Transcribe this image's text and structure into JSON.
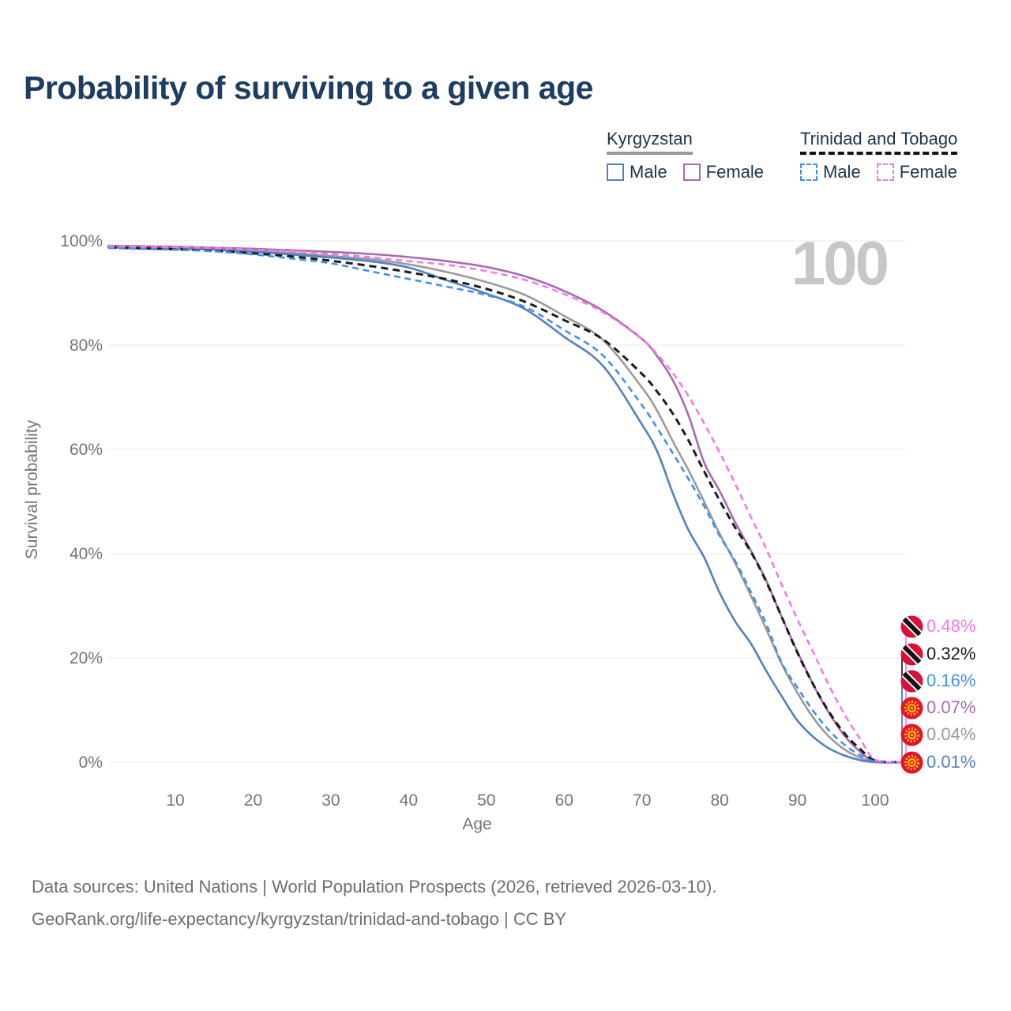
{
  "title": "Probability of surviving to a given age",
  "watermark_age": "100",
  "legend": {
    "groups": [
      {
        "name": "Kyrgyzstan",
        "line_style": "solid",
        "underline_color": "#9a9a9a",
        "items": [
          {
            "label": "Male",
            "color": "#5580c0"
          },
          {
            "label": "Female",
            "color": "#aa6ab0"
          }
        ]
      },
      {
        "name": "Trinidad and Tobago",
        "line_style": "dashed",
        "underline_color": "#141414",
        "items": [
          {
            "label": "Male",
            "color": "#4190f0"
          },
          {
            "label": "Female",
            "color": "#f47ae8"
          }
        ]
      }
    ]
  },
  "chart_data": {
    "type": "line",
    "title": "Probability of surviving to a given age",
    "xlabel": "Age",
    "ylabel": "Survival probability",
    "xlim": [
      0,
      100
    ],
    "ylim": [
      0,
      100
    ],
    "grid": "horizontal",
    "legend_position": "top-right",
    "x_ticks": [
      {
        "value": 10,
        "label": "10"
      },
      {
        "value": 20,
        "label": "20"
      },
      {
        "value": 30,
        "label": "30"
      },
      {
        "value": 40,
        "label": "40"
      },
      {
        "value": 50,
        "label": "50"
      },
      {
        "value": 60,
        "label": "60"
      },
      {
        "value": 70,
        "label": "70"
      },
      {
        "value": 80,
        "label": "80"
      },
      {
        "value": 90,
        "label": "90"
      },
      {
        "value": 100,
        "label": "100"
      }
    ],
    "y_ticks": [
      {
        "value": 0,
        "label": "0%"
      },
      {
        "value": 20,
        "label": "20%"
      },
      {
        "value": 40,
        "label": "40%"
      },
      {
        "value": 60,
        "label": "60%"
      },
      {
        "value": 80,
        "label": "80%"
      },
      {
        "value": 100,
        "label": "100%"
      }
    ],
    "x": [
      0,
      5,
      10,
      15,
      20,
      25,
      30,
      35,
      40,
      45,
      50,
      55,
      60,
      65,
      70,
      72,
      74,
      76,
      78,
      80,
      82,
      84,
      86,
      88,
      90,
      92,
      94,
      96,
      98,
      100,
      103.5
    ],
    "series": [
      {
        "name": "Kyrgyzstan — All",
        "country": "Kyrgyzstan",
        "sex": "all",
        "color": "#9b9b9b",
        "dash": null,
        "width": 2.6,
        "values": [
          98.8,
          98.7,
          98.6,
          98.4,
          98.1,
          97.7,
          97.1,
          96.5,
          95.5,
          94.0,
          92.1,
          89.6,
          85.6,
          81.0,
          71.9,
          67.3,
          61.5,
          56.0,
          50.0,
          43.8,
          38.2,
          32.0,
          25.5,
          18.8,
          13.3,
          8.6,
          5.0,
          2.5,
          0.9,
          0.04,
          0
        ]
      },
      {
        "name": "Kyrgyzstan — Male",
        "country": "Kyrgyzstan",
        "sex": "male",
        "color": "#5580c0",
        "dash": null,
        "width": 2.6,
        "values": [
          98.9,
          98.6,
          98.5,
          98.3,
          97.9,
          97.4,
          96.8,
          96.1,
          94.9,
          92.4,
          89.9,
          86.9,
          81.6,
          76.0,
          64.8,
          59.5,
          51.5,
          44.5,
          39.3,
          32.5,
          27.0,
          22.8,
          17.5,
          12.6,
          8.0,
          4.9,
          2.7,
          1.3,
          0.4,
          0.01,
          0
        ]
      },
      {
        "name": "Kyrgyzstan — Female",
        "country": "Kyrgyzstan",
        "sex": "female",
        "color": "#aa6ab0",
        "dash": null,
        "width": 2.6,
        "values": [
          99.1,
          99.0,
          98.9,
          98.7,
          98.5,
          98.2,
          97.9,
          97.5,
          96.9,
          96.1,
          95.0,
          93.2,
          90.4,
          86.6,
          81.2,
          77.8,
          73.2,
          66.5,
          57.5,
          52.0,
          46.0,
          40.6,
          34.8,
          27.8,
          21.2,
          15.0,
          9.6,
          5.2,
          2.1,
          0.07,
          0
        ]
      },
      {
        "name": "Trinidad and Tobago — All",
        "country": "Trinidad and Tobago",
        "sex": "all",
        "color": "#1c1c1c",
        "dash": "9 6",
        "width": 3,
        "values": [
          98.8,
          98.6,
          98.4,
          98.1,
          97.6,
          97.0,
          96.2,
          95.2,
          94.0,
          92.6,
          90.8,
          88.3,
          84.8,
          81.1,
          74.5,
          71.0,
          66.8,
          61.7,
          55.8,
          50.2,
          45.0,
          40.4,
          34.6,
          27.8,
          21.0,
          15.0,
          9.8,
          5.6,
          2.6,
          0.32,
          0
        ]
      },
      {
        "name": "Trinidad and Tobago — Male",
        "country": "Trinidad and Tobago",
        "sex": "male",
        "color": "#4190f0",
        "dash": "8 5.5",
        "width": 2.6,
        "values": [
          98.7,
          98.5,
          98.3,
          98.0,
          97.4,
          96.6,
          95.7,
          94.2,
          92.7,
          91.2,
          89.6,
          87.3,
          82.9,
          78.0,
          68.5,
          64.0,
          59.2,
          54.3,
          49.1,
          43.4,
          38.6,
          32.7,
          26.5,
          19.0,
          14.3,
          9.9,
          6.2,
          3.4,
          1.4,
          0.16,
          0
        ]
      },
      {
        "name": "Trinidad and Tobago — Female",
        "country": "Trinidad and Tobago",
        "sex": "female",
        "color": "#f47ae8",
        "dash": "8 5.5",
        "width": 2.6,
        "values": [
          99.0,
          98.9,
          98.8,
          98.6,
          98.3,
          98.0,
          97.5,
          96.9,
          96.1,
          95.4,
          94.2,
          92.5,
          89.8,
          86.3,
          81.2,
          78.2,
          74.6,
          70.2,
          65.0,
          59.4,
          53.4,
          47.1,
          40.9,
          34.0,
          27.4,
          21.2,
          14.9,
          9.3,
          4.6,
          0.48,
          0.05
        ]
      }
    ],
    "end_labels": [
      {
        "text": "0.48%",
        "color": "#f47ae8",
        "flag": "trinidad-and-tobago",
        "series": "Trinidad and Tobago — Female"
      },
      {
        "text": "0.32%",
        "color": "#1c1c1c",
        "flag": "trinidad-and-tobago",
        "series": "Trinidad and Tobago — All"
      },
      {
        "text": "0.16%",
        "color": "#4190f0",
        "flag": "trinidad-and-tobago",
        "series": "Trinidad and Tobago — Male"
      },
      {
        "text": "0.07%",
        "color": "#aa6ab0",
        "flag": "kyrgyzstan",
        "series": "Kyrgyzstan — Female"
      },
      {
        "text": "0.04%",
        "color": "#9b9b9b",
        "flag": "kyrgyzstan",
        "series": "Kyrgyzstan — All"
      },
      {
        "text": "0.01%",
        "color": "#5580c0",
        "flag": "kyrgyzstan",
        "series": "Kyrgyzstan — Male"
      }
    ],
    "flag_colors": {
      "trinidad_red": "#d6123a",
      "trinidad_black": "#151515",
      "kyrgyzstan_red": "#e8112d",
      "kyrgyzstan_sun": "#fbc30a"
    },
    "axis_text_color": "#757575",
    "grid_color": "#e9e9e9"
  },
  "footer": {
    "line1": "Data sources: United Nations | World Population Prospects (2026, retrieved 2026-03-10).",
    "line2": "GeoRank.org/life-expectancy/kyrgyzstan/trinidad-and-tobago | CC BY"
  }
}
